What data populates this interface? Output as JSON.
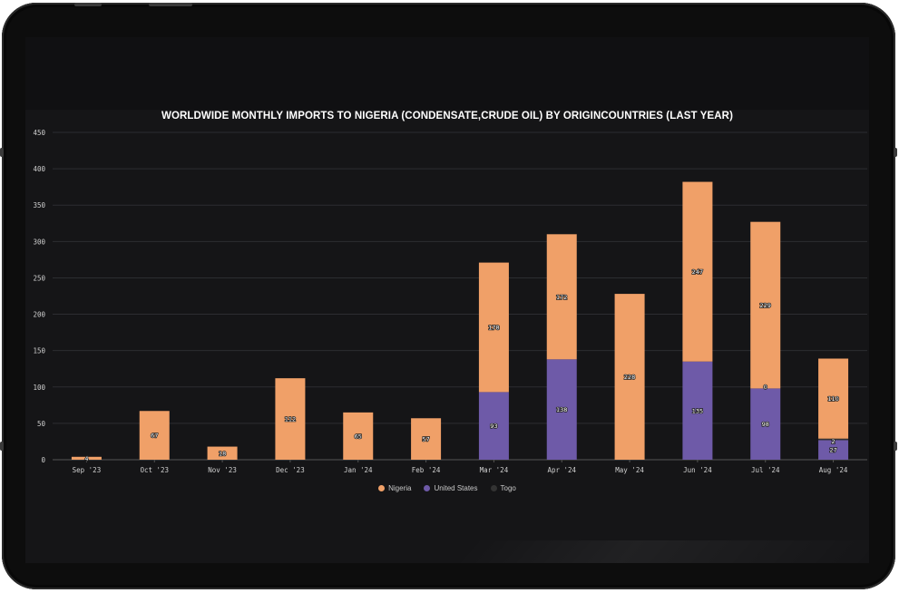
{
  "chart_data": {
    "type": "bar",
    "stacked": true,
    "title": "WORLDWIDE MONTHLY IMPORTS TO NIGERIA (CONDENSATE,CRUDE OIL) BY ORIGINCOUNTRIES (LAST YEAR)",
    "categories": [
      "Sep '23",
      "Oct '23",
      "Nov '23",
      "Dec '23",
      "Jan '24",
      "Feb '24",
      "Mar '24",
      "Apr '24",
      "May '24",
      "Jun '24",
      "Jul '24",
      "Aug '24"
    ],
    "series": [
      {
        "name": "United States",
        "color": "#6e5aa8",
        "values": [
          0,
          0,
          0,
          0,
          0,
          0,
          93,
          138,
          0,
          135,
          98,
          27
        ],
        "labels": [
          "",
          "",
          "",
          "",
          "",
          "",
          "93",
          "138",
          "",
          "135",
          "98",
          "27"
        ]
      },
      {
        "name": "Togo",
        "color": "#333333",
        "values": [
          0,
          0,
          0,
          0,
          0,
          0,
          0,
          0,
          0,
          0,
          0,
          2
        ],
        "labels": [
          "",
          "",
          "",
          "",
          "",
          "",
          "",
          "",
          "",
          "",
          "0",
          "2"
        ]
      },
      {
        "name": "Nigeria",
        "color": "#f0a068",
        "values": [
          4,
          67,
          18,
          112,
          65,
          57,
          178,
          172,
          228,
          247,
          229,
          110
        ],
        "labels": [
          "4",
          "67",
          "18",
          "112",
          "65",
          "57",
          "178",
          "172",
          "228",
          "247",
          "229",
          "110"
        ]
      }
    ],
    "legend_order": [
      "Nigeria",
      "United States",
      "Togo"
    ],
    "yticks": [
      0,
      50,
      100,
      150,
      200,
      250,
      300,
      350,
      400,
      450
    ],
    "ylim": [
      0,
      450
    ],
    "grid": true,
    "legend_position": "bottom"
  }
}
